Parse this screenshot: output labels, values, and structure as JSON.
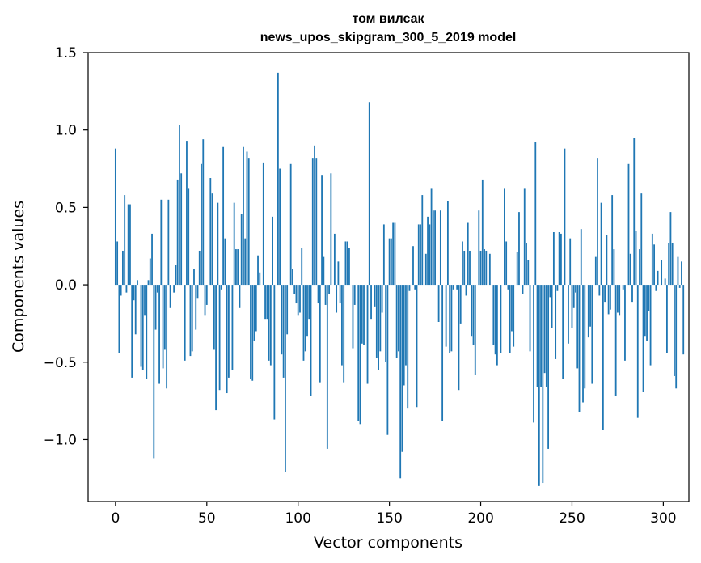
{
  "chart_data": {
    "type": "bar",
    "title_line1": "том вилсак",
    "title_line2": "news_upos_skipgram_300_5_2019 model",
    "xlabel": "Vector components",
    "ylabel": "Components values",
    "xlim": [
      -15,
      314
    ],
    "ylim": [
      -1.4,
      1.5
    ],
    "xticks": [
      0,
      50,
      100,
      150,
      200,
      250,
      300
    ],
    "yticks": [
      -1.0,
      -0.5,
      0.0,
      0.5,
      1.0,
      1.5
    ],
    "ytick_labels": [
      "−1.0",
      "−0.5",
      "0.0",
      "0.5",
      "1.0",
      "1.5"
    ],
    "bar_color": "#1f77b4",
    "grid": false,
    "x_start": 0,
    "values": [
      0.88,
      0.28,
      -0.44,
      -0.07,
      0.22,
      0.58,
      -0.05,
      0.52,
      0.52,
      -0.6,
      -0.1,
      -0.32,
      0.03,
      0.0,
      -0.53,
      -0.55,
      -0.2,
      -0.61,
      0.03,
      0.17,
      0.33,
      -1.12,
      -0.29,
      -0.05,
      -0.64,
      0.55,
      -0.54,
      -0.42,
      -0.67,
      0.55,
      -0.15,
      0.0,
      -0.05,
      0.13,
      0.68,
      1.03,
      0.72,
      0.0,
      -0.49,
      0.93,
      0.62,
      -0.46,
      -0.43,
      0.1,
      -0.29,
      -0.09,
      0.22,
      0.78,
      0.94,
      -0.2,
      -0.13,
      0.0,
      0.69,
      0.59,
      -0.42,
      -0.81,
      0.53,
      -0.68,
      -0.03,
      0.89,
      0.3,
      -0.7,
      -0.6,
      0.0,
      -0.55,
      0.53,
      0.23,
      0.23,
      -0.15,
      0.46,
      0.89,
      0.3,
      0.86,
      0.82,
      -0.61,
      -0.62,
      -0.36,
      -0.3,
      0.19,
      0.08,
      0.0,
      0.79,
      -0.22,
      -0.22,
      -0.49,
      -0.52,
      0.44,
      -0.87,
      0.0,
      1.37,
      0.75,
      -0.45,
      -0.6,
      -1.21,
      -0.32,
      0.0,
      0.78,
      0.1,
      -0.06,
      -0.12,
      -0.2,
      -0.18,
      0.24,
      -0.49,
      -0.43,
      -0.33,
      -0.22,
      -0.72,
      0.82,
      0.9,
      0.82,
      -0.12,
      -0.63,
      0.71,
      0.18,
      -0.13,
      -1.06,
      -0.06,
      0.72,
      0.0,
      0.33,
      -0.18,
      0.15,
      -0.12,
      -0.52,
      -0.63,
      0.28,
      0.28,
      0.24,
      0.0,
      -0.41,
      -0.13,
      0.0,
      -0.88,
      -0.9,
      -0.38,
      -0.39,
      0.0,
      -0.64,
      1.18,
      -0.22,
      0.0,
      -0.14,
      -0.47,
      -0.55,
      -0.43,
      -0.18,
      0.39,
      -0.5,
      -0.97,
      0.3,
      0.3,
      0.4,
      0.4,
      -0.47,
      -0.43,
      -1.25,
      -1.08,
      -0.65,
      -0.52,
      -0.8,
      -0.04,
      0.0,
      0.25,
      -0.03,
      -0.79,
      0.39,
      0.39,
      0.58,
      0.0,
      0.2,
      0.44,
      0.39,
      0.62,
      0.48,
      0.48,
      0.0,
      -0.24,
      0.48,
      -0.88,
      0.0,
      -0.4,
      0.54,
      -0.44,
      -0.43,
      -0.03,
      0.0,
      -0.03,
      -0.68,
      -0.25,
      0.28,
      0.22,
      -0.07,
      0.4,
      0.22,
      -0.33,
      -0.39,
      -0.58,
      0.0,
      0.48,
      0.22,
      0.68,
      0.23,
      0.22,
      0.0,
      0.2,
      0.0,
      -0.39,
      -0.45,
      -0.52,
      0.0,
      -0.44,
      0.0,
      0.62,
      0.28,
      -0.03,
      -0.44,
      -0.3,
      -0.4,
      0.0,
      0.21,
      0.47,
      0.0,
      -0.06,
      0.62,
      0.27,
      0.16,
      -0.43,
      0.0,
      -0.89,
      0.92,
      -0.66,
      -1.3,
      -0.66,
      -1.28,
      -0.57,
      -0.66,
      -1.06,
      -0.08,
      -0.28,
      0.34,
      -0.48,
      -0.04,
      0.34,
      0.33,
      -0.61,
      0.88,
      0.0,
      -0.38,
      0.3,
      -0.28,
      -0.15,
      -0.05,
      -0.54,
      -0.82,
      0.36,
      -0.76,
      -0.67,
      0.0,
      -0.34,
      -0.27,
      -0.64,
      0.0,
      0.18,
      0.82,
      -0.07,
      0.53,
      -0.94,
      -0.11,
      0.32,
      -0.19,
      -0.16,
      0.58,
      0.23,
      -0.72,
      -0.18,
      -0.2,
      0.0,
      -0.03,
      -0.49,
      0.0,
      0.78,
      0.2,
      -0.11,
      0.95,
      0.35,
      -0.86,
      0.23,
      0.59,
      -0.69,
      -0.33,
      -0.36,
      -0.17,
      -0.52,
      0.33,
      0.26,
      -0.04,
      0.09,
      0.0,
      0.16,
      0.0,
      0.04,
      -0.44,
      0.27,
      0.47,
      0.27,
      -0.59,
      -0.67,
      0.18,
      -0.02,
      0.15,
      -0.45
    ]
  }
}
